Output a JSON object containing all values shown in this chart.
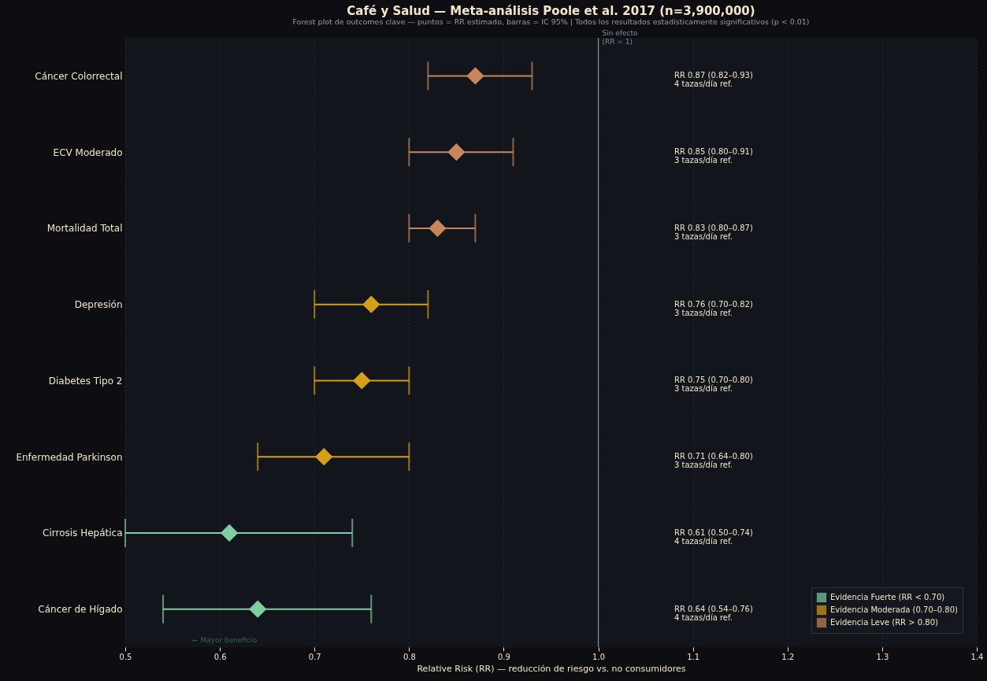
{
  "chart_data": {
    "type": "scatter",
    "title": "Café y Salud — Meta-análisis Poole et al. 2017 (n=3,900,000)",
    "subtitle": "Forest plot de outcomes clave — puntos = RR estimado, barras = IC 95% | Todos los resultados estadísticamente significativos (p < 0.01)",
    "xlabel": "Relative Risk (RR) — reducción de riesgo vs. no consumidores",
    "categories": [
      "Cáncer Colorrectal",
      "ECV Moderado",
      "Mortalidad Total",
      "Depresión",
      "Diabetes Tipo 2",
      "Enfermedad Parkinson",
      "Cirrosis Hepática",
      "Cáncer de Hígado"
    ],
    "series": [
      {
        "name": "Evidencia Fuerte (RR < 0.70)",
        "color": "#7dcfa0",
        "values": [
          null,
          null,
          null,
          null,
          null,
          null,
          0.61,
          0.64
        ],
        "errors": [
          null,
          null,
          null,
          null,
          null,
          null,
          [
            0.5,
            0.74
          ],
          [
            0.54,
            0.76
          ]
        ]
      },
      {
        "name": "Evidencia Moderada (0.70–0.80)",
        "color": "#d4a017",
        "values": [
          null,
          null,
          null,
          0.76,
          0.75,
          0.71,
          null,
          null
        ],
        "errors": [
          null,
          null,
          null,
          [
            0.7,
            0.82
          ],
          [
            0.7,
            0.8
          ],
          [
            0.64,
            0.8
          ],
          null,
          null
        ]
      },
      {
        "name": "Evidencia Leve (RR > 0.80)",
        "color": "#c8875a",
        "values": [
          0.87,
          0.85,
          0.83,
          null,
          null,
          null,
          null,
          null
        ],
        "errors": [
          [
            0.82,
            0.93
          ],
          [
            0.8,
            0.91
          ],
          [
            0.8,
            0.87
          ],
          null,
          null,
          null,
          null,
          null
        ]
      }
    ],
    "orientation": "horizontal",
    "xlim": [
      0.5,
      1.4
    ],
    "xticks": [
      0.5,
      0.6,
      0.7,
      0.8,
      0.9,
      {
        "value": 1.0,
        "label": "1.0"
      },
      1.1,
      1.2,
      1.3,
      1.4
    ],
    "ref_lines": [
      {
        "axis": "x",
        "value": 1.0,
        "label": "Sin efecto\n(RR = 1)",
        "color": "#8a8a96"
      }
    ],
    "annotations": [
      "RR 0.87  (0.82–0.93)\n4 tazas/día ref.",
      "RR 0.85  (0.80–0.91)\n3 tazas/día ref.",
      "RR 0.83  (0.80–0.87)\n3 tazas/día ref.",
      "RR 0.76  (0.70–0.82)\n3 tazas/día ref.",
      "RR 0.75  (0.70–0.80)\n3 tazas/día ref.",
      "RR 0.71  (0.64–0.80)\n3 tazas/día ref.",
      "RR 0.61  (0.50–0.74)\n4 tazas/día ref.",
      "RR 0.64  (0.54–0.76)\n4 tazas/día ref.",
      "← Mayor beneficio"
    ],
    "marker": "diamond",
    "grid": "x",
    "legend": "bottom right"
  }
}
